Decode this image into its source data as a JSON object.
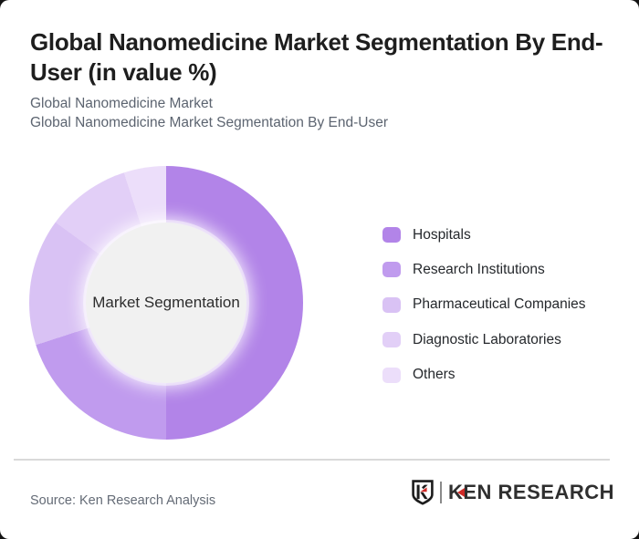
{
  "header": {
    "title": "Global Nanomedicine Market Segmentation By End-User (in value %)",
    "subtitles": [
      "Global Nanomedicine Market",
      "Global Nanomedicine Market Segmentation By End-User"
    ]
  },
  "chart_data": {
    "type": "pie",
    "subtype": "donut",
    "title": "Global Nanomedicine Market Segmentation By End-User (in value %)",
    "unit": "value %",
    "center_label": "Market Segmentation",
    "categories": [
      "Hospitals",
      "Research Institutions",
      "Pharmaceutical Companies",
      "Diagnostic Laboratories",
      "Others"
    ],
    "values": [
      50,
      20,
      15,
      10,
      5
    ],
    "colors": [
      "#b284e8",
      "#c09bee",
      "#d9c2f4",
      "#e2cff7",
      "#ecdefa"
    ],
    "start_angle_deg": 0,
    "direction": "clockwise",
    "inner_radius_ratio": 0.59,
    "inner_circle_color": "#f1f1f1",
    "legend_position": "right",
    "value_labels_shown": false
  },
  "footer": {
    "source": "Source: Ken Research Analysis",
    "logo_text": "KEN RESEARCH",
    "logo_accent_color": "#cf2a27"
  }
}
